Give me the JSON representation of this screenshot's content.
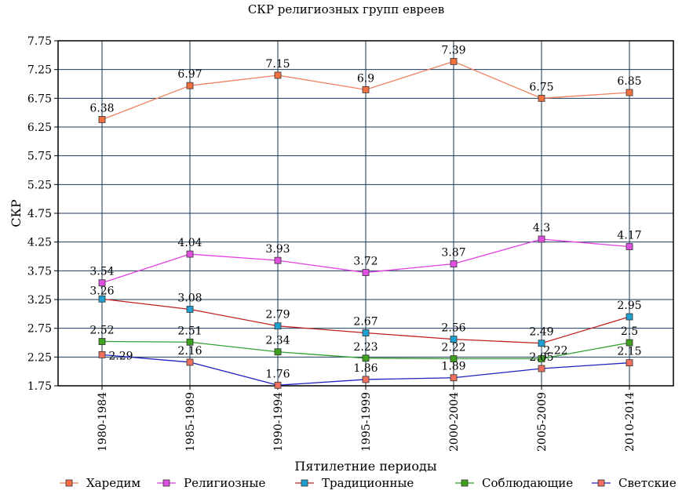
{
  "chart_data": {
    "type": "line",
    "title": "СКР религиозных групп евреев",
    "xlabel": "Пятилетние периоды",
    "ylabel": "СКР",
    "categories": [
      "1980-1984",
      "1985-1989",
      "1990-1994",
      "1995-1999",
      "2000-2004",
      "2005-2009",
      "2010-2014"
    ],
    "ylim": [
      1.75,
      7.75
    ],
    "yticks": [
      "1.75",
      "2.25",
      "2.75",
      "3.25",
      "3.75",
      "4.25",
      "4.75",
      "5.25",
      "5.75",
      "6.25",
      "6.75",
      "7.25",
      "7.75"
    ],
    "grid": true,
    "legend_position": "bottom",
    "series": [
      {
        "name": "Харедим",
        "line_color": "#f08060",
        "marker_color": "#f07040",
        "values": [
          6.38,
          6.97,
          7.15,
          6.9,
          7.39,
          6.75,
          6.85
        ],
        "labels": [
          "6.38",
          "6.97",
          "7.15",
          "6.9",
          "7.39",
          "6.75",
          "6.85"
        ]
      },
      {
        "name": "Религиозные",
        "line_color": "#e040e0",
        "marker_color": "#e050e0",
        "values": [
          3.54,
          4.04,
          3.93,
          3.72,
          3.87,
          4.3,
          4.17
        ],
        "labels": [
          "3.54",
          "4.04",
          "3.93",
          "3.72",
          "3.87",
          "4.3",
          "4.17"
        ]
      },
      {
        "name": "Традиционные",
        "line_color": "#c02020",
        "marker_color": "#20a0d0",
        "values": [
          3.26,
          3.08,
          2.79,
          2.67,
          2.56,
          2.49,
          2.95
        ],
        "labels": [
          "3.26",
          "3.08",
          "2.79",
          "2.67",
          "2.56",
          "2.49",
          "2.95"
        ]
      },
      {
        "name": "Соблюдающие",
        "line_color": "#30a030",
        "marker_color": "#40a020",
        "values": [
          2.52,
          2.51,
          2.34,
          2.23,
          2.22,
          2.22,
          2.5
        ],
        "labels": [
          "2.52",
          "2.51",
          "2.34",
          "2.23",
          "2.22",
          "2.22",
          "2.5"
        ]
      },
      {
        "name": "Светские",
        "line_color": "#2020c0",
        "marker_color": "#f07060",
        "values": [
          2.29,
          2.16,
          1.76,
          1.86,
          1.89,
          2.05,
          2.15
        ],
        "labels": [
          "2.29",
          "2.16",
          "1.76",
          "1.86",
          "1.89",
          "2.05",
          "2.15"
        ]
      }
    ]
  }
}
